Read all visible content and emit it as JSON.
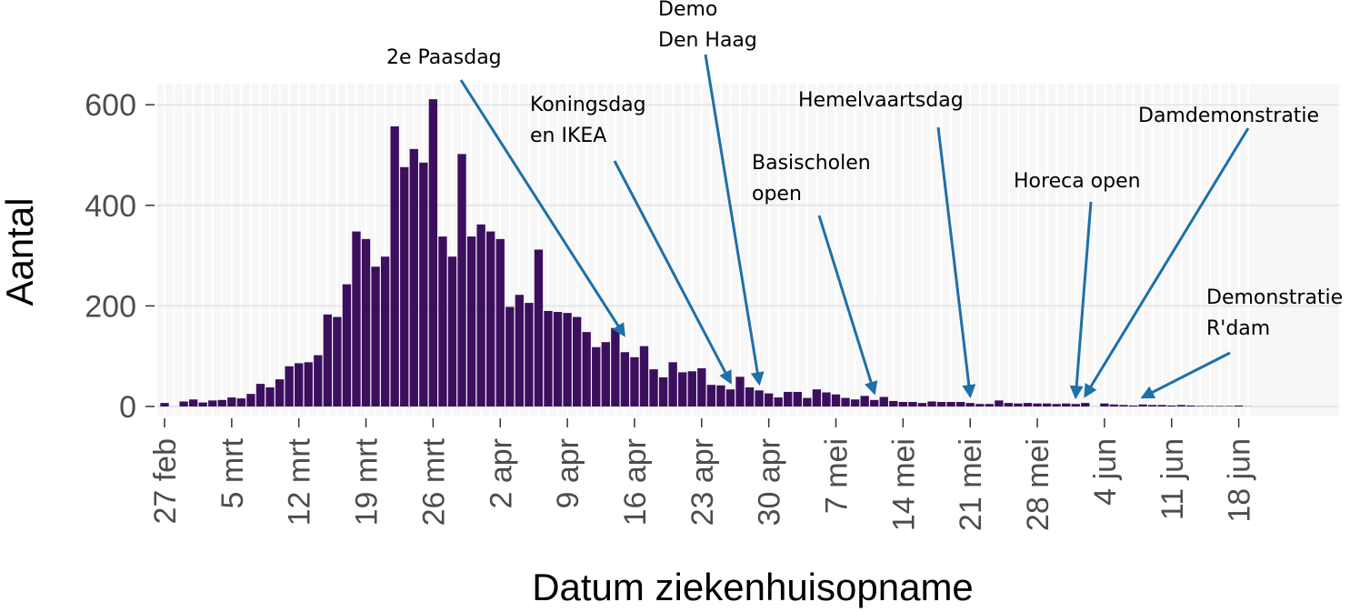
{
  "chart_data": {
    "type": "bar",
    "title": "",
    "xlabel": "Datum ziekenhuisopname",
    "ylabel": "Aantal",
    "ylim": [
      0,
      650
    ],
    "yticks": [
      0,
      200,
      400,
      600
    ],
    "grid": true,
    "bar_color": "#3b0f5e",
    "last_bar_color": "#f0b43a",
    "x_tick_labels": [
      "27 feb",
      "5 mrt",
      "12 mrt",
      "19 mrt",
      "26 mrt",
      "2 apr",
      "9 apr",
      "16 apr",
      "23 apr",
      "30 apr",
      "7 mei",
      "14 mei",
      "21 mei",
      "28 mei",
      "4 jun",
      "11 jun",
      "18 jun"
    ],
    "x_tick_day_index": [
      0,
      7,
      14,
      21,
      28,
      35,
      42,
      49,
      56,
      63,
      70,
      77,
      84,
      91,
      98,
      105,
      112
    ],
    "start_date": "27 feb",
    "values": [
      7,
      0,
      10,
      14,
      8,
      12,
      13,
      18,
      16,
      25,
      45,
      38,
      54,
      80,
      86,
      88,
      102,
      183,
      178,
      243,
      348,
      333,
      278,
      298,
      557,
      476,
      512,
      485,
      611,
      338,
      298,
      502,
      338,
      362,
      348,
      333,
      198,
      222,
      206,
      312,
      190,
      188,
      186,
      178,
      148,
      118,
      128,
      156,
      108,
      98,
      120,
      74,
      58,
      88,
      68,
      70,
      76,
      43,
      42,
      34,
      59,
      38,
      32,
      26,
      18,
      29,
      29,
      17,
      34,
      28,
      24,
      17,
      14,
      21,
      13,
      19,
      11,
      9,
      9,
      7,
      10,
      9,
      9,
      9,
      7,
      5,
      5,
      12,
      7,
      6,
      7,
      6,
      6,
      5,
      6,
      5,
      7,
      0,
      6,
      4,
      3,
      2,
      4,
      3,
      3,
      2,
      3,
      2,
      1,
      1,
      1,
      1,
      2,
      1
    ],
    "annotations": [
      {
        "lines": [
          "2e Paasdag"
        ],
        "day": 46
      },
      {
        "lines": [
          "Koningsdag",
          "en IKEA"
        ],
        "day": 59
      },
      {
        "lines": [
          "Demo",
          "Den Haag"
        ],
        "day": 62
      },
      {
        "lines": [
          "Basischolen",
          "open"
        ],
        "day": 74
      },
      {
        "lines": [
          "Hemelvaartsdag"
        ],
        "day": 84
      },
      {
        "lines": [
          "Horeca open"
        ],
        "day": 95
      },
      {
        "lines": [
          "Damdemonstratie"
        ],
        "day": 96
      },
      {
        "lines": [
          "Demonstratie",
          "R'dam"
        ],
        "day": 102
      }
    ]
  }
}
